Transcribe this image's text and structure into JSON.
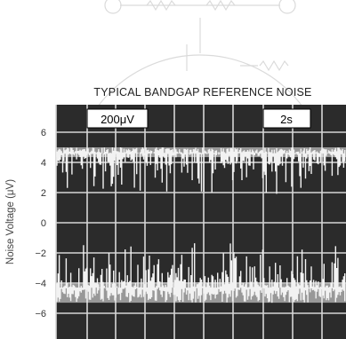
{
  "chart_data": {
    "type": "line",
    "title": "TYPICAL BANDGAP REFERENCE NOISE",
    "ylabel": "Noise Voltage (μV)",
    "xlabel": "",
    "yticks": [
      "6",
      "4",
      "2",
      "0",
      "−2",
      "−4",
      "−6"
    ],
    "ytick_values": [
      6,
      4,
      2,
      0,
      -2,
      -4,
      -6
    ],
    "ylim": [
      -8,
      8
    ],
    "grid": true,
    "background": "dark oscilloscope screen",
    "vertical_scale_box": "200μV",
    "time_scale_box": "2s",
    "series": [
      {
        "baseline": 4.6,
        "upper_envelope": 5.0,
        "lower_envelope": 1.8
      },
      {
        "baseline": -4.3,
        "upper_envelope": -1.3,
        "lower_envelope": -5.3
      }
    ]
  },
  "colors": {
    "screen": "#2b2b2b",
    "grid": "#d6d6d6",
    "trace": "#f2f2f2",
    "watermark": "#bdbdbd"
  }
}
